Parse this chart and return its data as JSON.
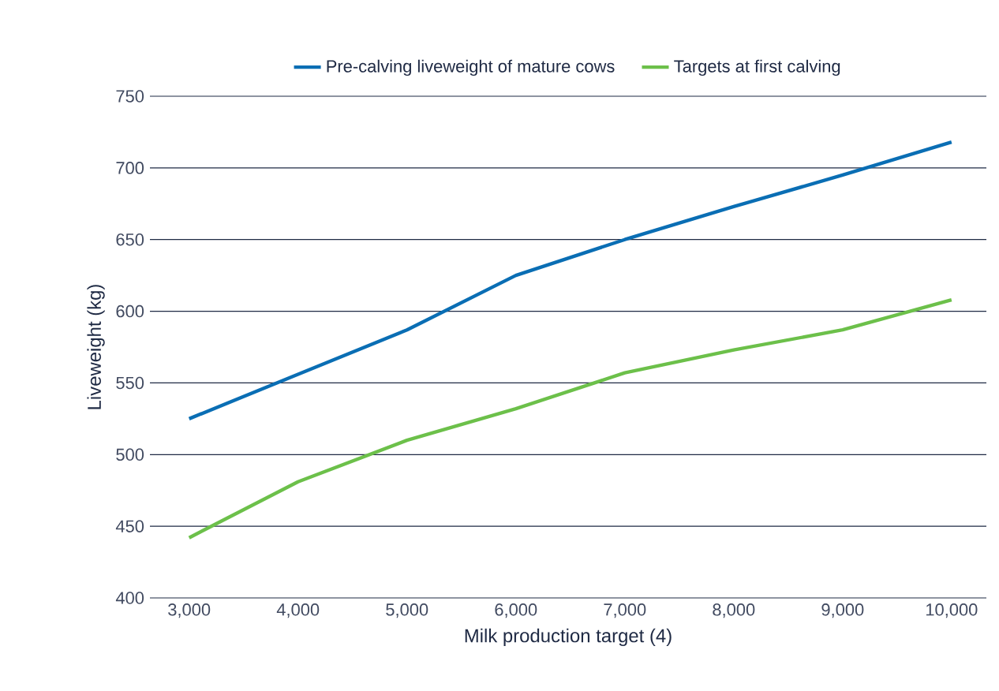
{
  "chart_data": {
    "type": "line",
    "xlabel": "Milk production target (4)",
    "ylabel": "Liveweight (kg)",
    "categories": [
      "3,000",
      "4,000",
      "5,000",
      "6,000",
      "7,000",
      "8,000",
      "9,000",
      "10,000"
    ],
    "series": [
      {
        "name": "Pre-calving liveweight of mature cows",
        "color": "#0a6eb4",
        "values": [
          525,
          556,
          587,
          625,
          650,
          673,
          695,
          718
        ]
      },
      {
        "name": "Targets at first calving",
        "color": "#6cc04a",
        "values": [
          442,
          481,
          510,
          532,
          557,
          573,
          587,
          608
        ]
      }
    ],
    "ylim": [
      400,
      750
    ],
    "yticks": [
      400,
      450,
      500,
      550,
      600,
      650,
      700,
      750
    ],
    "grid": "y",
    "legend": "top",
    "marker": "none",
    "line_style": "solid"
  }
}
